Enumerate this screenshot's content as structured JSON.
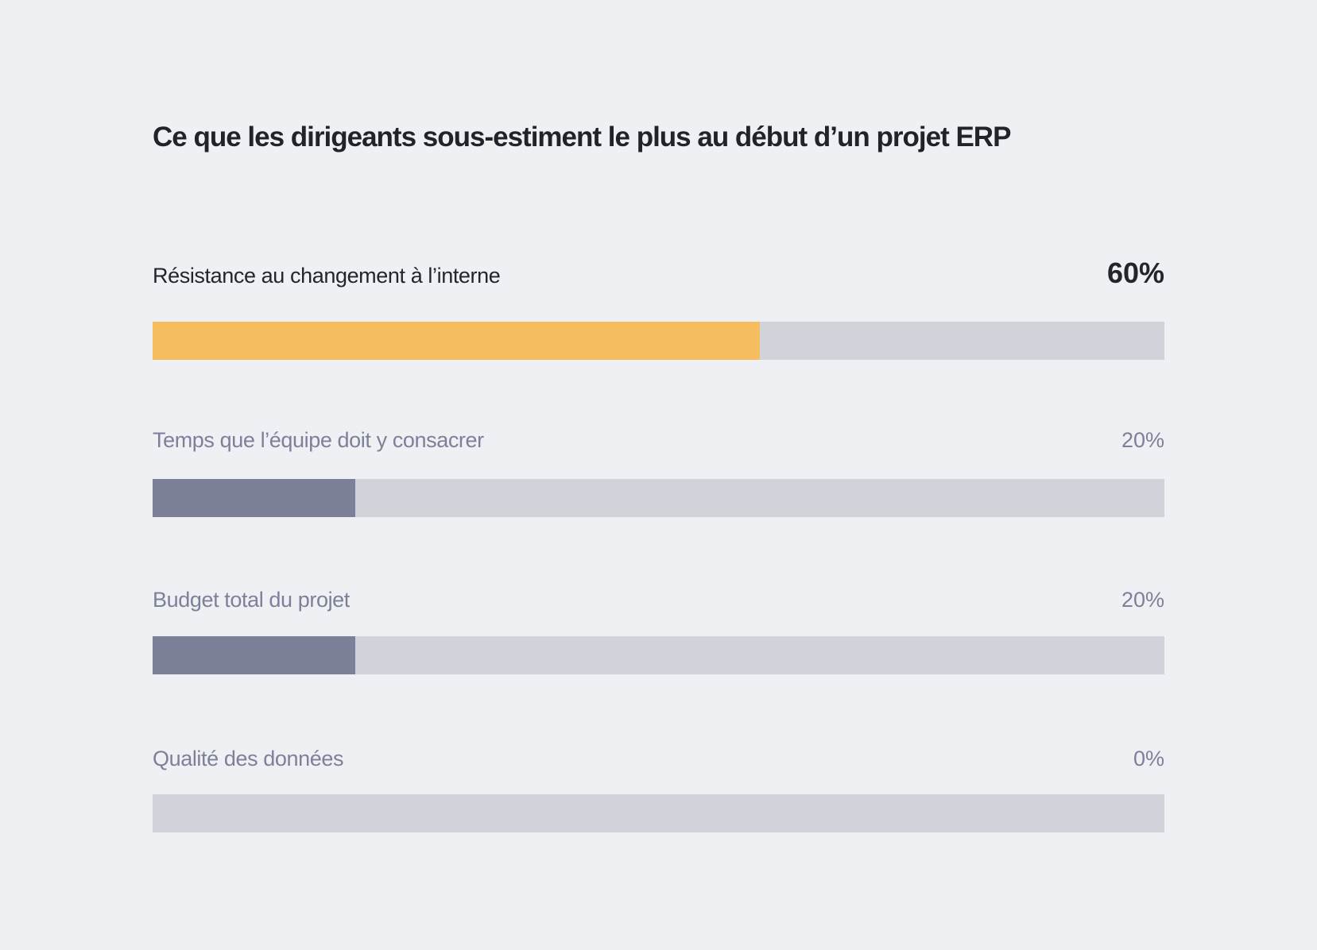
{
  "colors": {
    "background": "#eff0f3",
    "track": "#d1d3da",
    "highlight": "#f5bd5d",
    "muted": "#7c8199"
  },
  "chart_data": {
    "type": "bar",
    "orientation": "horizontal",
    "title": "Ce que les dirigeants sous-estiment le plus au début d’un projet ERP",
    "xlim": [
      0,
      100
    ],
    "grid": false,
    "categories": [
      "Résistance au changement à l’interne",
      "Temps que l’équipe doit y consacrer",
      "Budget total du projet",
      "Qualité des données"
    ],
    "values": [
      60,
      20,
      20,
      0
    ],
    "value_labels": [
      "60%",
      "20%",
      "20%",
      "0%"
    ],
    "highlight_index": 0
  }
}
